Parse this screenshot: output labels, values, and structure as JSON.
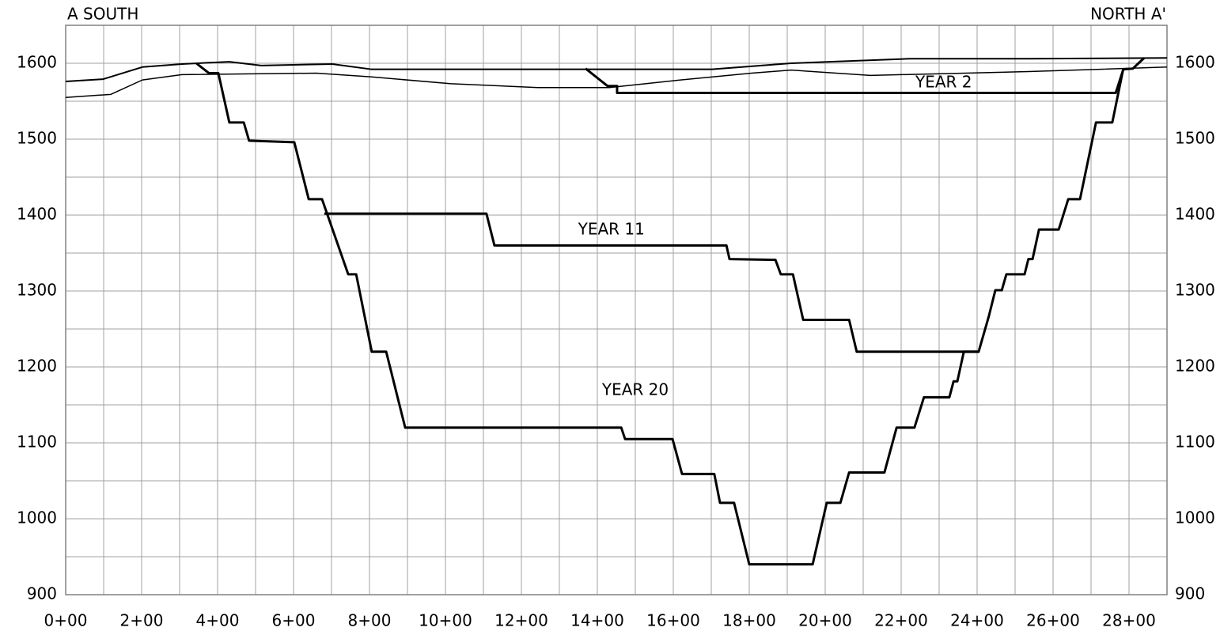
{
  "chart_data": {
    "type": "line",
    "corner_labels": [
      "A SOUTH",
      "NORTH A'"
    ],
    "xlim": [
      0,
      2900
    ],
    "ylim": [
      900,
      1650
    ],
    "y2lim": [
      900,
      1650
    ],
    "xticks": [
      {
        "value": 0,
        "label": "0+00"
      },
      {
        "value": 200,
        "label": "2+00"
      },
      {
        "value": 400,
        "label": "4+00"
      },
      {
        "value": 600,
        "label": "6+00"
      },
      {
        "value": 800,
        "label": "8+00"
      },
      {
        "value": 1000,
        "label": "10+00"
      },
      {
        "value": 1200,
        "label": "12+00"
      },
      {
        "value": 1400,
        "label": "14+00"
      },
      {
        "value": 1600,
        "label": "16+00"
      },
      {
        "value": 1800,
        "label": "18+00"
      },
      {
        "value": 2000,
        "label": "20+00"
      },
      {
        "value": 2200,
        "label": "22+00"
      },
      {
        "value": 2400,
        "label": "24+00"
      },
      {
        "value": 2600,
        "label": "26+00"
      },
      {
        "value": 2800,
        "label": "28+00"
      }
    ],
    "yticks": [
      900,
      1000,
      1100,
      1200,
      1300,
      1400,
      1500,
      1600
    ],
    "y2ticks": [
      900,
      1000,
      1100,
      1200,
      1300,
      1400,
      1500,
      1600
    ],
    "grid": true,
    "x_grid_step": 100,
    "y_grid_step": 50,
    "series": [
      {
        "color": "#000000",
        "width": 2,
        "x": [
          0,
          98,
          202,
          306,
          431,
          515,
          702,
          806,
          1077,
          1702,
          1910,
          2223,
          2535,
          2900
        ],
        "values": [
          1576,
          1579,
          1595,
          1599,
          1602,
          1597,
          1599,
          1592,
          1592,
          1592,
          1600,
          1606,
          1606,
          1607
        ]
      },
      {
        "color": "#000000",
        "width": 1.5,
        "x": [
          0,
          119,
          202,
          306,
          660,
          806,
          1015,
          1244,
          1431,
          1619,
          1806,
          1910,
          2119,
          2535,
          2900
        ],
        "values": [
          1555,
          1559,
          1578,
          1585,
          1587,
          1582,
          1573,
          1568,
          1568,
          1578,
          1587,
          1591,
          1584,
          1589,
          1595
        ]
      },
      {
        "color": "#000000",
        "width": 3,
        "x": [
          1369,
          1427,
          1452,
          1452,
          2765,
          2785,
          2810,
          2840
        ],
        "values": [
          1593,
          1570,
          1570,
          1561,
          1561,
          1592,
          1593,
          1607
        ]
      },
      {
        "color": "#000000",
        "width": 3,
        "x": [
          681,
          1108,
          1129,
          1740,
          1748,
          1869,
          1883,
          1915,
          1942,
          2063,
          2083,
          2404
        ],
        "values": [
          1402,
          1402,
          1360,
          1360,
          1342,
          1341,
          1322,
          1322,
          1262,
          1262,
          1220,
          1220
        ]
      },
      {
        "color": "#000000",
        "width": 3,
        "x": [
          344,
          377,
          402,
          431,
          469,
          483,
          602,
          640,
          675,
          744,
          765,
          806,
          844,
          894,
          1463,
          1473,
          1598,
          1623,
          1708,
          1723,
          1760,
          1800,
          1967,
          2004,
          2040,
          2063,
          2156,
          2188,
          2235,
          2260,
          2327,
          2338,
          2348,
          2365,
          2404,
          2431,
          2448,
          2465,
          2477,
          2525,
          2535,
          2546,
          2563,
          2615,
          2640,
          2671,
          2713,
          2756,
          2785
        ],
        "values": [
          1600,
          1587,
          1587,
          1522,
          1522,
          1498,
          1496,
          1421,
          1421,
          1322,
          1322,
          1220,
          1220,
          1120,
          1120,
          1105,
          1105,
          1059,
          1059,
          1021,
          1021,
          940,
          940,
          1021,
          1021,
          1061,
          1061,
          1120,
          1120,
          1160,
          1160,
          1181,
          1181,
          1220,
          1220,
          1267,
          1301,
          1301,
          1322,
          1322,
          1342,
          1342,
          1381,
          1381,
          1421,
          1421,
          1522,
          1522,
          1593
        ]
      }
    ],
    "annotations": [
      {
        "text": "YEAR 2",
        "x": 2312,
        "y": 1574
      },
      {
        "text": "YEAR 11",
        "x": 1437,
        "y": 1380
      },
      {
        "text": "YEAR 20",
        "x": 1500,
        "y": 1169
      }
    ]
  }
}
